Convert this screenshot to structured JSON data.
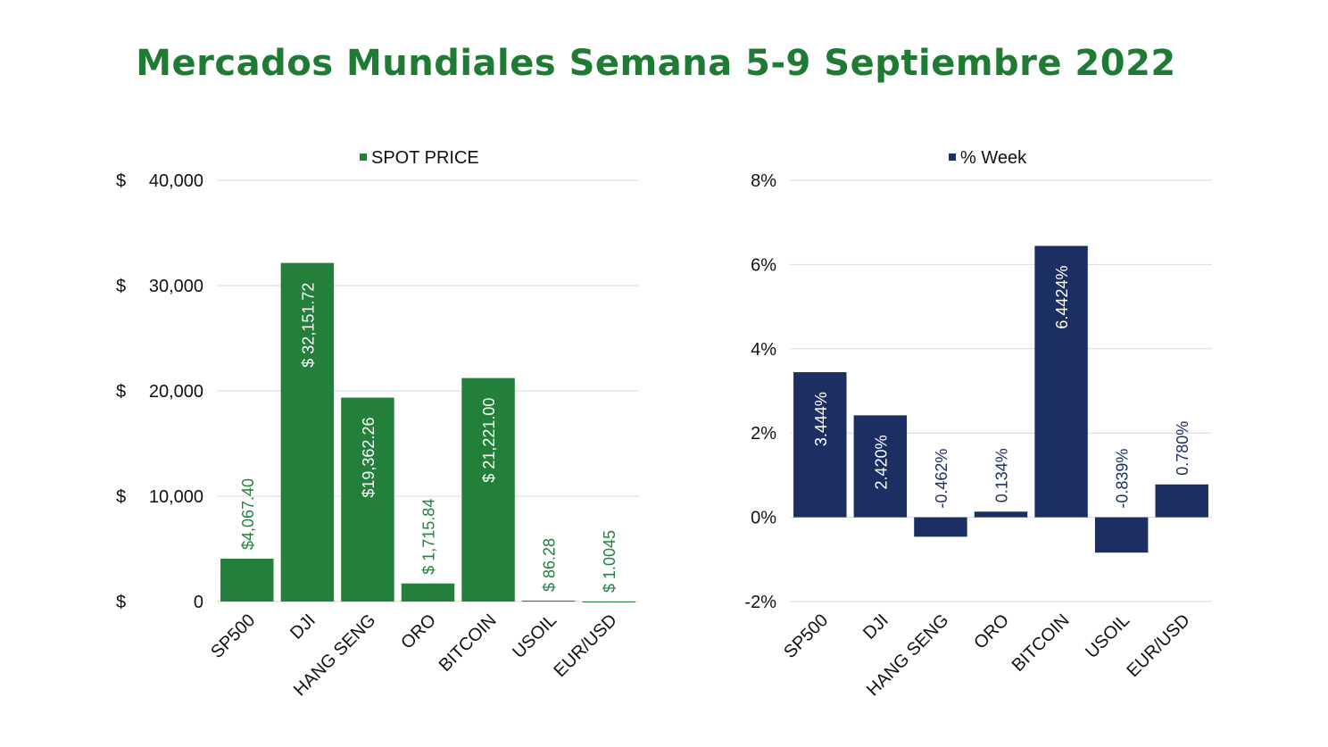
{
  "title": "Mercados Mundiales Semana 5-9 Septiembre 2022",
  "colors": {
    "title": "#1f7a34",
    "spot": "#23803a",
    "week": "#1b2f63",
    "grid": "#d9d9d9",
    "text": "#111111"
  },
  "chart_data": [
    {
      "type": "bar",
      "legend": "SPOT PRICE",
      "legend_position": "top",
      "grid": true,
      "categories": [
        "SP500",
        "DJI",
        "HANG SENG",
        "ORO",
        "BITCOIN",
        "USOIL",
        "EUR/USD"
      ],
      "series": [
        {
          "name": "SPOT PRICE",
          "values": [
            4067.4,
            32151.72,
            19362.26,
            1715.84,
            21221.0,
            86.28,
            1.0045
          ]
        }
      ],
      "data_labels": [
        "$4,067.40",
        "$ 32,151.72",
        "$19,362.26",
        "$ 1,715.84",
        "$ 21,221.00",
        "$ 86.28",
        "$ 1.0045"
      ],
      "label_inside": [
        false,
        true,
        true,
        false,
        true,
        false,
        false
      ],
      "yticks": [
        {
          "value": 0,
          "prefix": "$",
          "label": "0"
        },
        {
          "value": 10000,
          "prefix": "$",
          "label": "10,000"
        },
        {
          "value": 20000,
          "prefix": "$",
          "label": "20,000"
        },
        {
          "value": 30000,
          "prefix": "$",
          "label": "30,000"
        },
        {
          "value": 40000,
          "prefix": "$",
          "label": "40,000"
        }
      ],
      "ylim": [
        0,
        40000
      ]
    },
    {
      "type": "bar",
      "legend": "% Week",
      "legend_position": "top",
      "grid": true,
      "categories": [
        "SP500",
        "DJI",
        "HANG SENG",
        "ORO",
        "BITCOIN",
        "USOIL",
        "EUR/USD"
      ],
      "series": [
        {
          "name": "% Week",
          "values": [
            3.444,
            2.42,
            -0.462,
            0.134,
            6.4424,
            -0.839,
            0.78
          ]
        }
      ],
      "data_labels": [
        "3.444%",
        "2.420%",
        "-0.462%",
        "0.134%",
        "6.4424%",
        "-0.839%",
        "0.780%"
      ],
      "label_inside": [
        true,
        true,
        false,
        false,
        true,
        false,
        false
      ],
      "yticks": [
        {
          "value": -2,
          "label": "-2%"
        },
        {
          "value": 0,
          "label": "0%"
        },
        {
          "value": 2,
          "label": "2%"
        },
        {
          "value": 4,
          "label": "4%"
        },
        {
          "value": 6,
          "label": "6%"
        },
        {
          "value": 8,
          "label": "8%"
        }
      ],
      "ylim": [
        -2,
        8
      ]
    }
  ]
}
